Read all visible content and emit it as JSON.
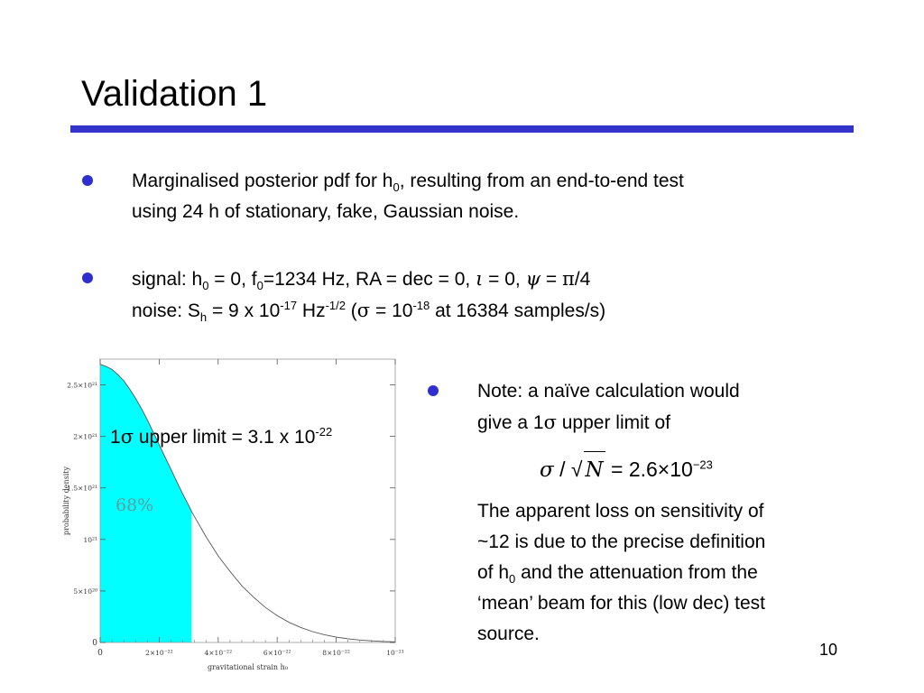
{
  "slide": {
    "title": "Validation 1",
    "page_number": "10",
    "accent_color": "#3333cc",
    "fill_color": "#00ffff"
  },
  "bullet1": {
    "text_a": "Marginalised posterior pdf for h",
    "sub": "0",
    "text_b": ", resulting from an end-to-end test",
    "line2": "using 24 h of stationary, fake, Gaussian noise."
  },
  "bullet2": {
    "l1_a": "signal: h",
    "l1_sub1": "0",
    "l1_b": " = 0, f",
    "l1_sub2": "0",
    "l1_c": "=1234 Hz, RA = dec = 0, ",
    "l1_iota": "ι",
    "l1_d": " = 0, ",
    "l1_psi": "ψ",
    "l1_e": " = ",
    "l1_pi": "π",
    "l1_f": "/4",
    "l2_a": "noise:  S",
    "l2_sub": "h",
    "l2_b": " = 9 x 10",
    "l2_sup1": "-17",
    "l2_c": " Hz",
    "l2_sup2": "-1/2",
    "l2_d": " (",
    "l2_sigma": "σ",
    "l2_e": " = 10",
    "l2_sup3": "-18",
    "l2_f": " at 16384 samples/s)"
  },
  "bullet3": {
    "line1": "Note: a naïve calculation would",
    "line2_a": "give a 1",
    "line2_sigma": "σ",
    "line2_b": " upper limit of",
    "formula": {
      "sigma": "σ",
      "slash": " / ",
      "sqrt": "√",
      "n": "N",
      "eq": " = 2.6×10",
      "exp": "−23"
    },
    "para_lines": [
      "The apparent  loss on sensitivity of",
      "~12 is due to the precise definition",
      "of h",
      "‘mean’ beam for this (low dec) test",
      "source."
    ],
    "para_sub": "0",
    "para_line3_b": " and the attenuation from the"
  },
  "annotations": {
    "upper_limit_a": "1",
    "upper_limit_sigma": "σ",
    "upper_limit_b": " upper limit = 3.1 x 10",
    "upper_limit_sup": "-22",
    "percent": "68%"
  },
  "chart_data": {
    "type": "area",
    "xlabel": "gravitational strain  h₀",
    "ylabel": "probability density",
    "xlim": [
      0,
      1e-21
    ],
    "ylim": [
      0,
      2.75e+21
    ],
    "x_ticks": [
      "0",
      "2×10⁻²²",
      "4×10⁻²²",
      "6×10⁻²²",
      "8×10⁻²²",
      "10⁻²¹"
    ],
    "y_ticks": [
      "0",
      "5×10²⁰",
      "10²¹",
      "1.5×10²¹",
      "2×10²¹",
      "2.5×10²¹"
    ],
    "x": [
      0,
      2e-23,
      4e-23,
      6e-23,
      8e-23,
      1e-22,
      1.2e-22,
      1.4e-22,
      1.6e-22,
      1.8e-22,
      2e-22,
      2.2e-22,
      2.4e-22,
      2.6e-22,
      2.8e-22,
      3e-22,
      3.1e-22,
      3.2e-22,
      3.4e-22,
      3.6e-22,
      3.8e-22,
      4e-22,
      4.4e-22,
      4.8e-22,
      5.2e-22,
      5.6e-22,
      6e-22,
      6.4e-22,
      6.8e-22,
      7.2e-22,
      7.6e-22,
      8e-22,
      8.4e-22,
      8.8e-22,
      9.2e-22,
      9.6e-22,
      1e-21
    ],
    "y": [
      2.7e+21,
      2.68e+21,
      2.65e+21,
      2.6e+21,
      2.54e+21,
      2.46e+21,
      2.37e+21,
      2.27e+21,
      2.16e+21,
      2.04e+21,
      1.92e+21,
      1.8e+21,
      1.68e+21,
      1.56e+21,
      1.44e+21,
      1.33e+21,
      1.27e+21,
      1.22e+21,
      1.12e+21,
      1.02e+21,
      9.3e+20,
      8.4e+20,
      6.9e+20,
      5.5e+20,
      4.4e+20,
      3.4e+20,
      2.6e+20,
      1.95e+20,
      1.45e+20,
      1.05e+20,
      7.5e+19,
      5.2e+19,
      3.6e+19,
      2.4e+19,
      1.6e+19,
      1e+19,
      6e+18
    ],
    "shaded_range": [
      0,
      3.1e-22
    ],
    "grid": false
  }
}
